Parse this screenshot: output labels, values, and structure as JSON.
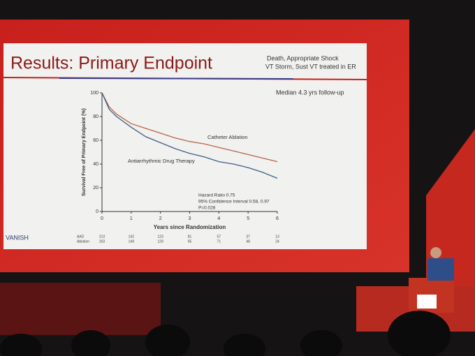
{
  "slide": {
    "title": "Results: Primary Endpoint",
    "subtitle": [
      "Death, Appropriate Shock",
      "VT Storm, Sust VT treated in ER"
    ],
    "logo": "VANISH",
    "note": "Median 4.3 yrs follow-up"
  },
  "chart_data": {
    "type": "line",
    "xlabel": "Years since Randomization",
    "ylabel": "Survival Free of Primary Endpoint (%)",
    "x": [
      0,
      0.25,
      0.5,
      1,
      1.5,
      2,
      2.5,
      3,
      3.5,
      4,
      4.5,
      5,
      5.5,
      6
    ],
    "series": [
      {
        "name": "Catheter Ablation",
        "color": "#b5654a",
        "values": [
          100,
          88,
          82,
          74,
          70,
          66,
          62,
          59,
          57,
          54,
          51,
          48,
          45,
          42
        ]
      },
      {
        "name": "Antiarrhythmic Drug Therapy",
        "color": "#3d5f86",
        "values": [
          100,
          86,
          80,
          71,
          63,
          58,
          53,
          49,
          46,
          42,
          40,
          37,
          33,
          28
        ]
      }
    ],
    "xlim": [
      0,
      6
    ],
    "xticks": [
      0,
      1,
      2,
      3,
      4,
      5,
      6
    ],
    "ylim": [
      0,
      100
    ],
    "yticks": [
      0,
      20,
      40,
      60,
      80,
      100
    ],
    "annotations": [
      "Hazard Ratio 0.75",
      "95% Confidence Interval 0.58, 0.97",
      "P=0.028"
    ]
  },
  "risk_table": {
    "rows": [
      {
        "label": "AAD",
        "values": [
          213,
          142,
          123,
          81,
          57,
          37,
          13
        ]
      },
      {
        "label": "Ablation",
        "values": [
          203,
          149,
          129,
          95,
          71,
          48,
          24
        ]
      }
    ]
  }
}
